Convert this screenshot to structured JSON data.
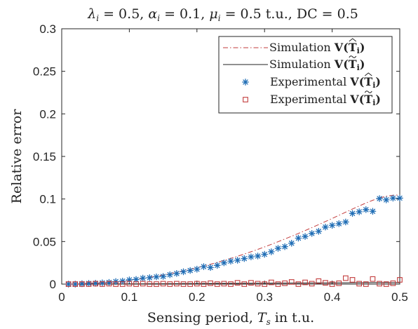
{
  "chart_data": {
    "type": "line",
    "title": "λ_i = 0.5, α_i = 0.1, μ_i =  0.5 t.u., DC = 0.5",
    "title_parts": {
      "lambda_sym": "λ",
      "lambda_val": " = 0.5, ",
      "alpha_sym": "α",
      "alpha_val": " = 0.1, ",
      "mu_sym": "μ",
      "mu_val": " =  0.5 t.u., DC = 0.5",
      "sub_i": "i"
    },
    "xlabel": "Sensing period, T_s in t.u.",
    "xlabel_parts": {
      "pre": "Sensing period, ",
      "sym": "T",
      "sub": "s",
      "post": " in t.u."
    },
    "ylabel": "Relative error",
    "xlim": [
      0,
      0.5
    ],
    "ylim": [
      0,
      0.3
    ],
    "xticks": [
      "0",
      "0.1",
      "0.2",
      "0.3",
      "0.4",
      "0.5"
    ],
    "yticks": [
      "0",
      "0.05",
      "0.1",
      "0.15",
      "0.2",
      "0.25",
      "0.3"
    ],
    "legend_position": "top-right",
    "grid": false,
    "x": [
      0.01,
      0.02,
      0.03,
      0.04,
      0.05,
      0.06,
      0.07,
      0.08,
      0.09,
      0.1,
      0.11,
      0.12,
      0.13,
      0.14,
      0.15,
      0.16,
      0.17,
      0.18,
      0.19,
      0.2,
      0.21,
      0.22,
      0.23,
      0.24,
      0.25,
      0.26,
      0.27,
      0.28,
      0.29,
      0.3,
      0.31,
      0.32,
      0.33,
      0.34,
      0.35,
      0.36,
      0.37,
      0.38,
      0.39,
      0.4,
      0.41,
      0.42,
      0.43,
      0.44,
      0.45,
      0.46,
      0.47,
      0.48,
      0.49,
      0.5
    ],
    "series": [
      {
        "name": "Simulation V(T̂_i)",
        "legend_prefix": "Simulation ",
        "hat": "^",
        "style": "dashdot",
        "color": "#c23b3b",
        "values": [
          0.0,
          0.0002,
          0.0005,
          0.0008,
          0.0012,
          0.0017,
          0.0023,
          0.003,
          0.0038,
          0.0047,
          0.0057,
          0.0068,
          0.008,
          0.0093,
          0.0107,
          0.0122,
          0.0138,
          0.0155,
          0.0173,
          0.0192,
          0.0212,
          0.0233,
          0.0255,
          0.0278,
          0.0302,
          0.0327,
          0.0353,
          0.038,
          0.0408,
          0.0437,
          0.0467,
          0.0498,
          0.053,
          0.0562,
          0.0595,
          0.0629,
          0.0664,
          0.0699,
          0.0735,
          0.0771,
          0.0808,
          0.0845,
          0.0882,
          0.0918,
          0.0953,
          0.0985,
          0.1012,
          0.1032,
          0.1044,
          0.1048
        ]
      },
      {
        "name": "Simulation V(T̃_i)",
        "legend_prefix": "Simulation ",
        "hat": "~",
        "style": "solid",
        "color": "#222222",
        "values": [
          0.0,
          0.0,
          0.0,
          0.0001,
          0.0001,
          0.0001,
          0.0002,
          0.0002,
          0.0002,
          0.0003,
          0.0003,
          0.0003,
          0.0004,
          0.0004,
          0.0004,
          0.0005,
          0.0005,
          0.0006,
          0.0006,
          0.0006,
          0.0007,
          0.0007,
          0.0008,
          0.0008,
          0.0008,
          0.0009,
          0.0009,
          0.001,
          0.001,
          0.001,
          0.0011,
          0.0011,
          0.0012,
          0.0012,
          0.0012,
          0.0013,
          0.0013,
          0.0014,
          0.0014,
          0.0014,
          0.0015,
          0.0015,
          0.0016,
          0.0016,
          0.0016,
          0.0017,
          0.0017,
          0.0018,
          0.0018,
          0.0018
        ]
      },
      {
        "name": "Experimental V(T̂_i)",
        "legend_prefix": "Experimental ",
        "hat": "^",
        "style": "asterisk",
        "color": "#1f6db5",
        "values": [
          0.0,
          0.0,
          0.0005,
          0.0008,
          0.001,
          0.0015,
          0.002,
          0.003,
          0.0035,
          0.005,
          0.0055,
          0.007,
          0.0075,
          0.0085,
          0.009,
          0.011,
          0.0125,
          0.0145,
          0.016,
          0.0175,
          0.0205,
          0.0195,
          0.022,
          0.025,
          0.027,
          0.028,
          0.03,
          0.032,
          0.033,
          0.035,
          0.038,
          0.042,
          0.044,
          0.048,
          0.054,
          0.056,
          0.0595,
          0.062,
          0.067,
          0.069,
          0.071,
          0.073,
          0.083,
          0.085,
          0.0875,
          0.0855,
          0.1005,
          0.099,
          0.101,
          0.101
        ]
      },
      {
        "name": "Experimental V(T̃_i)",
        "legend_prefix": "Experimental ",
        "hat": "~",
        "style": "square",
        "color": "#c23b3b",
        "values": [
          0.0,
          0.0,
          0.0,
          0.0,
          0.0005,
          0.0,
          0.0005,
          0.0,
          0.0,
          0.0005,
          0.0,
          0.0005,
          0.0,
          0.0,
          0.0005,
          0.0,
          0.0005,
          0.0,
          0.0,
          0.0005,
          0.0,
          0.001,
          0.0,
          0.0005,
          0.0,
          0.0015,
          0.0,
          0.0015,
          0.0005,
          0.0,
          0.002,
          0.0,
          0.001,
          0.0025,
          0.0,
          0.002,
          0.0005,
          0.0035,
          0.0015,
          0.0,
          0.001,
          0.007,
          0.005,
          0.0005,
          0.0,
          0.006,
          0.0005,
          0.0,
          0.001,
          0.005
        ]
      }
    ]
  }
}
